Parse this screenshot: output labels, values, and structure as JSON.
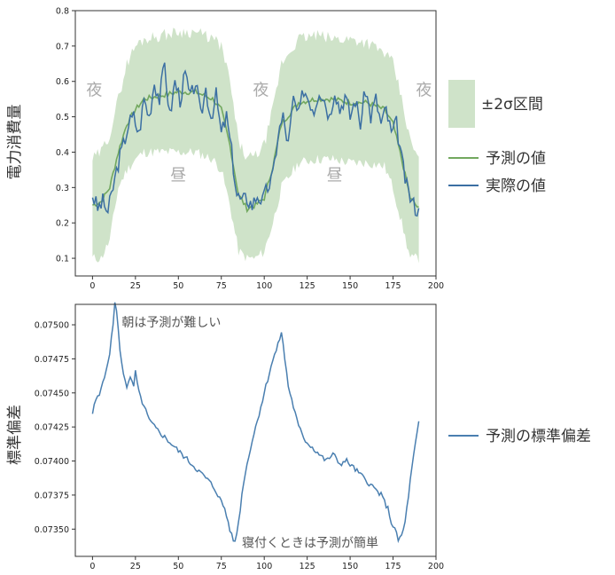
{
  "colors": {
    "band": "#cfe3c9",
    "predicted": "#72a85f",
    "actual": "#3b6fa3",
    "std": "#4a7fb0",
    "axis": "#333333",
    "period_text": "#aaaaaa"
  },
  "chart_data": [
    {
      "type": "line",
      "ylabel": "電力消費量",
      "xlim": [
        -10,
        200
      ],
      "ylim": [
        0.05,
        0.8
      ],
      "xticks": [
        0,
        25,
        50,
        75,
        100,
        125,
        150,
        175,
        200
      ],
      "yticks": [
        0.1,
        0.2,
        0.3,
        0.4,
        0.5,
        0.6,
        0.7,
        0.8
      ],
      "xtick_labels": [
        "0",
        "25",
        "50",
        "75",
        "100",
        "125",
        "150",
        "175",
        "200"
      ],
      "ytick_labels": [
        "0.1",
        "0.2",
        "0.3",
        "0.4",
        "0.5",
        "0.6",
        "0.7",
        "0.8"
      ],
      "band_key": [
        [
          0,
          0.1
        ],
        [
          5,
          0.1
        ],
        [
          10,
          0.15
        ],
        [
          15,
          0.3
        ],
        [
          20,
          0.35
        ],
        [
          25,
          0.38
        ],
        [
          30,
          0.4
        ],
        [
          40,
          0.4
        ],
        [
          50,
          0.4
        ],
        [
          60,
          0.4
        ],
        [
          70,
          0.38
        ],
        [
          75,
          0.35
        ],
        [
          80,
          0.25
        ],
        [
          85,
          0.12
        ],
        [
          90,
          0.1
        ],
        [
          95,
          0.1
        ],
        [
          100,
          0.12
        ],
        [
          105,
          0.2
        ],
        [
          110,
          0.3
        ],
        [
          120,
          0.37
        ],
        [
          130,
          0.38
        ],
        [
          140,
          0.38
        ],
        [
          150,
          0.37
        ],
        [
          160,
          0.37
        ],
        [
          170,
          0.36
        ],
        [
          175,
          0.3
        ],
        [
          180,
          0.2
        ],
        [
          185,
          0.1
        ],
        [
          190,
          0.1
        ]
      ],
      "band_upper_key": [
        [
          0,
          0.38
        ],
        [
          5,
          0.4
        ],
        [
          10,
          0.45
        ],
        [
          15,
          0.55
        ],
        [
          20,
          0.65
        ],
        [
          25,
          0.7
        ],
        [
          30,
          0.72
        ],
        [
          40,
          0.73
        ],
        [
          50,
          0.74
        ],
        [
          60,
          0.74
        ],
        [
          70,
          0.72
        ],
        [
          75,
          0.7
        ],
        [
          80,
          0.6
        ],
        [
          85,
          0.43
        ],
        [
          90,
          0.38
        ],
        [
          95,
          0.39
        ],
        [
          100,
          0.42
        ],
        [
          105,
          0.52
        ],
        [
          110,
          0.65
        ],
        [
          120,
          0.72
        ],
        [
          130,
          0.73
        ],
        [
          140,
          0.72
        ],
        [
          150,
          0.72
        ],
        [
          160,
          0.71
        ],
        [
          170,
          0.68
        ],
        [
          175,
          0.65
        ],
        [
          180,
          0.55
        ],
        [
          185,
          0.43
        ],
        [
          190,
          0.38
        ]
      ],
      "series": [
        {
          "name": "予測の値",
          "color": "#72a85f",
          "key": [
            [
              0,
              0.25
            ],
            [
              5,
              0.26
            ],
            [
              10,
              0.3
            ],
            [
              15,
              0.4
            ],
            [
              20,
              0.48
            ],
            [
              25,
              0.52
            ],
            [
              30,
              0.55
            ],
            [
              40,
              0.56
            ],
            [
              50,
              0.57
            ],
            [
              60,
              0.57
            ],
            [
              70,
              0.55
            ],
            [
              75,
              0.52
            ],
            [
              80,
              0.42
            ],
            [
              85,
              0.28
            ],
            [
              90,
              0.24
            ],
            [
              95,
              0.25
            ],
            [
              100,
              0.27
            ],
            [
              105,
              0.36
            ],
            [
              110,
              0.48
            ],
            [
              120,
              0.54
            ],
            [
              130,
              0.55
            ],
            [
              140,
              0.55
            ],
            [
              150,
              0.54
            ],
            [
              160,
              0.54
            ],
            [
              170,
              0.52
            ],
            [
              175,
              0.48
            ],
            [
              180,
              0.38
            ],
            [
              185,
              0.27
            ],
            [
              190,
              0.24
            ]
          ]
        },
        {
          "name": "実際の値",
          "color": "#3b6fa3",
          "key": [
            [
              0,
              0.28
            ],
            [
              3,
              0.24
            ],
            [
              6,
              0.26
            ],
            [
              9,
              0.23
            ],
            [
              12,
              0.3
            ],
            [
              15,
              0.37
            ],
            [
              18,
              0.42
            ],
            [
              21,
              0.48
            ],
            [
              24,
              0.5
            ],
            [
              27,
              0.45
            ],
            [
              30,
              0.55
            ],
            [
              33,
              0.5
            ],
            [
              36,
              0.6
            ],
            [
              39,
              0.55
            ],
            [
              42,
              0.65
            ],
            [
              45,
              0.5
            ],
            [
              48,
              0.6
            ],
            [
              51,
              0.55
            ],
            [
              54,
              0.62
            ],
            [
              57,
              0.55
            ],
            [
              60,
              0.6
            ],
            [
              63,
              0.5
            ],
            [
              66,
              0.58
            ],
            [
              69,
              0.5
            ],
            [
              72,
              0.56
            ],
            [
              75,
              0.45
            ],
            [
              78,
              0.5
            ],
            [
              81,
              0.4
            ],
            [
              84,
              0.28
            ],
            [
              87,
              0.26
            ],
            [
              90,
              0.27
            ],
            [
              93,
              0.25
            ],
            [
              96,
              0.28
            ],
            [
              99,
              0.26
            ],
            [
              102,
              0.3
            ],
            [
              105,
              0.33
            ],
            [
              108,
              0.45
            ],
            [
              111,
              0.5
            ],
            [
              114,
              0.42
            ],
            [
              117,
              0.55
            ],
            [
              120,
              0.5
            ],
            [
              123,
              0.58
            ],
            [
              126,
              0.55
            ],
            [
              129,
              0.52
            ],
            [
              132,
              0.58
            ],
            [
              135,
              0.55
            ],
            [
              138,
              0.5
            ],
            [
              141,
              0.58
            ],
            [
              144,
              0.52
            ],
            [
              147,
              0.56
            ],
            [
              150,
              0.5
            ],
            [
              153,
              0.55
            ],
            [
              156,
              0.48
            ],
            [
              159,
              0.58
            ],
            [
              162,
              0.5
            ],
            [
              165,
              0.55
            ],
            [
              168,
              0.48
            ],
            [
              171,
              0.52
            ],
            [
              174,
              0.45
            ],
            [
              177,
              0.48
            ],
            [
              180,
              0.38
            ],
            [
              183,
              0.3
            ],
            [
              186,
              0.26
            ],
            [
              190,
              0.23
            ]
          ]
        }
      ],
      "annotations": [
        {
          "text": "夜",
          "x": 1,
          "y": 0.56
        },
        {
          "text": "昼",
          "x": 50,
          "y": 0.32
        },
        {
          "text": "夜",
          "x": 98,
          "y": 0.56
        },
        {
          "text": "昼",
          "x": 141,
          "y": 0.32
        },
        {
          "text": "夜",
          "x": 193,
          "y": 0.56
        }
      ],
      "legend": {
        "band_label": "±2σ区間",
        "predicted_label": "予測の値",
        "actual_label": "実際の値"
      }
    },
    {
      "type": "line",
      "ylabel": "標準偏差",
      "xlim": [
        -10,
        200
      ],
      "ylim": [
        0.0733,
        0.07515
      ],
      "xticks": [
        0,
        25,
        50,
        75,
        100,
        125,
        150,
        175,
        200
      ],
      "yticks": [
        0.0735,
        0.07375,
        0.074,
        0.07425,
        0.0745,
        0.07475,
        0.075
      ],
      "xtick_labels": [
        "0",
        "25",
        "50",
        "75",
        "100",
        "125",
        "150",
        "175",
        "200"
      ],
      "ytick_labels": [
        "0.07350",
        "0.07375",
        "0.07400",
        "0.07425",
        "0.07450",
        "0.07475",
        "0.07500"
      ],
      "series": [
        {
          "name": "予測の標準偏差",
          "color": "#4a7fb0",
          "key": [
            [
              0,
              0.07435
            ],
            [
              2,
              0.07445
            ],
            [
              4,
              0.07448
            ],
            [
              6,
              0.0746
            ],
            [
              8,
              0.07465
            ],
            [
              10,
              0.0748
            ],
            [
              12,
              0.075
            ],
            [
              13,
              0.07515
            ],
            [
              14,
              0.07512
            ],
            [
              16,
              0.0748
            ],
            [
              18,
              0.07465
            ],
            [
              20,
              0.07455
            ],
            [
              22,
              0.0746
            ],
            [
              24,
              0.07455
            ],
            [
              25,
              0.07465
            ],
            [
              27,
              0.0745
            ],
            [
              30,
              0.0744
            ],
            [
              33,
              0.0743
            ],
            [
              36,
              0.07425
            ],
            [
              40,
              0.0742
            ],
            [
              44,
              0.07415
            ],
            [
              48,
              0.0741
            ],
            [
              52,
              0.07405
            ],
            [
              56,
              0.074
            ],
            [
              60,
              0.07395
            ],
            [
              64,
              0.0739
            ],
            [
              68,
              0.07385
            ],
            [
              72,
              0.07378
            ],
            [
              75,
              0.0737
            ],
            [
              77,
              0.07365
            ],
            [
              79,
              0.07355
            ],
            [
              81,
              0.07345
            ],
            [
              83,
              0.0734
            ],
            [
              85,
              0.07355
            ],
            [
              88,
              0.07385
            ],
            [
              92,
              0.0741
            ],
            [
              96,
              0.0743
            ],
            [
              100,
              0.0745
            ],
            [
              104,
              0.0747
            ],
            [
              108,
              0.07485
            ],
            [
              110,
              0.07495
            ],
            [
              112,
              0.07475
            ],
            [
              114,
              0.07455
            ],
            [
              117,
              0.0744
            ],
            [
              120,
              0.07425
            ],
            [
              124,
              0.07415
            ],
            [
              128,
              0.0741
            ],
            [
              132,
              0.07405
            ],
            [
              136,
              0.074
            ],
            [
              140,
              0.07405
            ],
            [
              144,
              0.07398
            ],
            [
              148,
              0.074
            ],
            [
              152,
              0.07395
            ],
            [
              156,
              0.0739
            ],
            [
              160,
              0.07385
            ],
            [
              164,
              0.0738
            ],
            [
              168,
              0.07375
            ],
            [
              172,
              0.07365
            ],
            [
              174,
              0.07355
            ],
            [
              176,
              0.0735
            ],
            [
              178,
              0.07342
            ],
            [
              180,
              0.07345
            ],
            [
              182,
              0.07355
            ],
            [
              184,
              0.07375
            ],
            [
              186,
              0.07395
            ],
            [
              188,
              0.07412
            ],
            [
              190,
              0.07428
            ]
          ]
        }
      ],
      "annotations": [
        {
          "text": "朝は予測が難しい",
          "x": 17,
          "y": 0.07502
        },
        {
          "text": "寝付くときは予測が簡単",
          "x": 87,
          "y": 0.0734
        }
      ],
      "legend": {
        "std_label": "予測の標準偏差"
      }
    }
  ]
}
